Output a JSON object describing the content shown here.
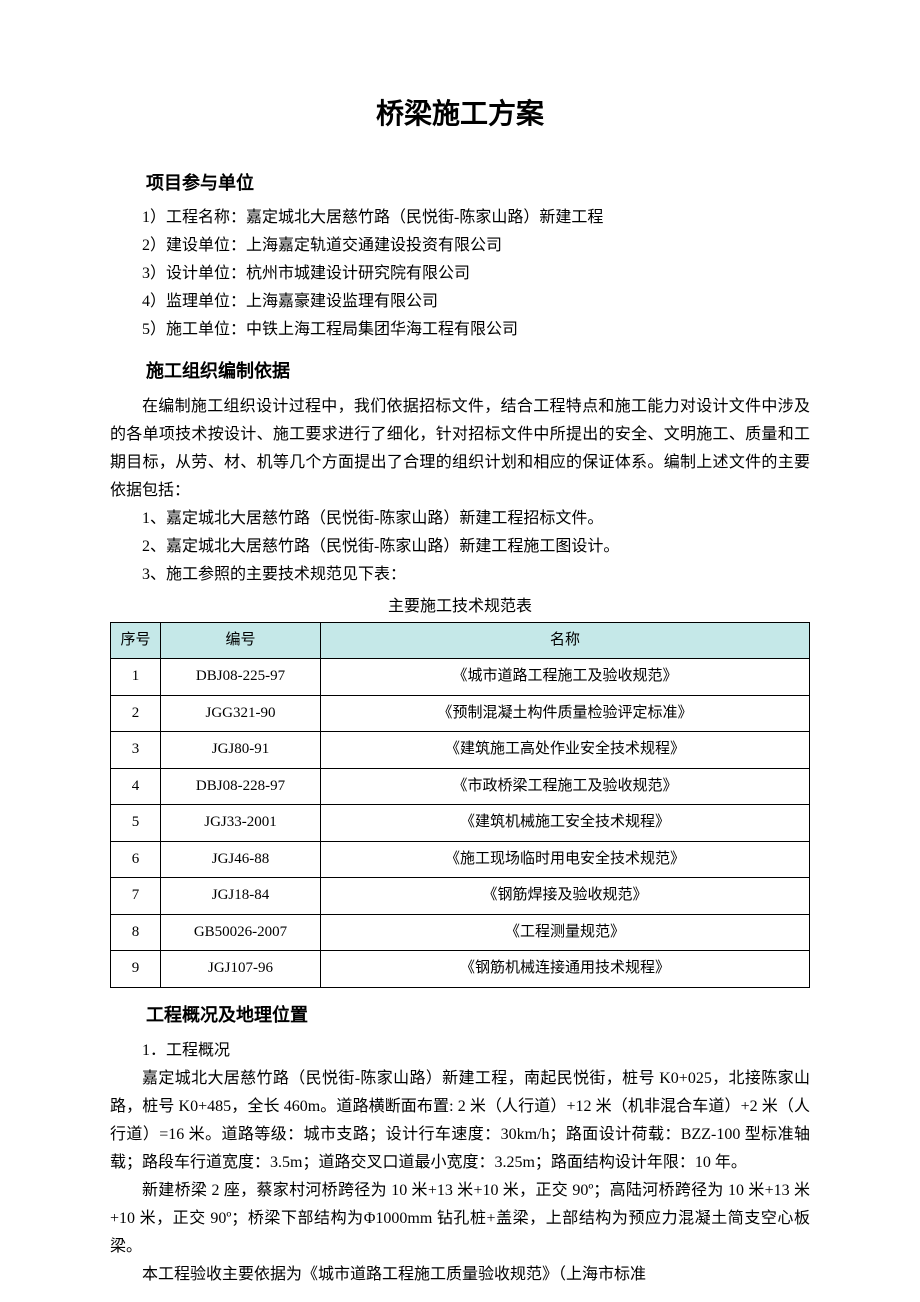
{
  "title": "桥梁施工方案",
  "sections": {
    "units": {
      "heading": "项目参与单位",
      "lines": [
        "1）工程名称：嘉定城北大居慈竹路（民悦街-陈家山路）新建工程",
        "2）建设单位：上海嘉定轨道交通建设投资有限公司",
        "3）设计单位：杭州市城建设计研究院有限公司",
        "4）监理单位：上海嘉豪建设监理有限公司",
        "5）施工单位：中铁上海工程局集团华海工程有限公司"
      ]
    },
    "basis": {
      "heading": "施工组织编制依据",
      "intro": "在编制施工组织设计过程中，我们依据招标文件，结合工程特点和施工能力对设计文件中涉及的各单项技术按设计、施工要求进行了细化，针对招标文件中所提出的安全、文明施工、质量和工期目标，从劳、材、机等几个方面提出了合理的组织计划和相应的保证体系。编制上述文件的主要依据包括：",
      "items": [
        "1、嘉定城北大居慈竹路（民悦街-陈家山路）新建工程招标文件。",
        "2、嘉定城北大居慈竹路（民悦街-陈家山路）新建工程施工图设计。",
        "3、施工参照的主要技术规范见下表："
      ],
      "table": {
        "caption": "主要施工技术规范表",
        "columns": [
          "序号",
          "编号",
          "名称"
        ],
        "header_bg": "#c5e8e8",
        "border_color": "#000000",
        "rows": [
          [
            "1",
            "DBJ08-225-97",
            "《城市道路工程施工及验收规范》"
          ],
          [
            "2",
            "JGG321-90",
            "《预制混凝土构件质量检验评定标准》"
          ],
          [
            "3",
            "JGJ80-91",
            "《建筑施工高处作业安全技术规程》"
          ],
          [
            "4",
            "DBJ08-228-97",
            "《市政桥梁工程施工及验收规范》"
          ],
          [
            "5",
            "JGJ33-2001",
            "《建筑机械施工安全技术规程》"
          ],
          [
            "6",
            "JGJ46-88",
            "《施工现场临时用电安全技术规范》"
          ],
          [
            "7",
            "JGJ18-84",
            "《钢筋焊接及验收规范》"
          ],
          [
            "8",
            "GB50026-2007",
            "《工程测量规范》"
          ],
          [
            "9",
            "JGJ107-96",
            "《钢筋机械连接通用技术规程》"
          ]
        ]
      }
    },
    "overview": {
      "heading": "工程概况及地理位置",
      "sub": "1．工程概况",
      "paras": [
        "嘉定城北大居慈竹路（民悦街-陈家山路）新建工程，南起民悦街，桩号 K0+025，北接陈家山路，桩号 K0+485，全长 460m。道路横断面布置: 2 米（人行道）+12 米（机非混合车道）+2 米（人行道）=16 米。道路等级：城市支路；设计行车速度：30km/h；路面设计荷载：BZZ-100 型标准轴载；路段车行道宽度：3.5m；道路交叉口道最小宽度：3.25m；路面结构设计年限：10 年。",
        "新建桥梁 2 座，蔡家村河桥跨径为 10 米+13 米+10 米，正交 90º；高陆河桥跨径为 10 米+13 米+10 米，正交 90º；桥梁下部结构为Φ1000mm 钻孔桩+盖梁，上部结构为预应力混凝土简支空心板梁。",
        "本工程验收主要依据为《城市道路工程施工质量验收规范》（上海市标准"
      ]
    }
  }
}
